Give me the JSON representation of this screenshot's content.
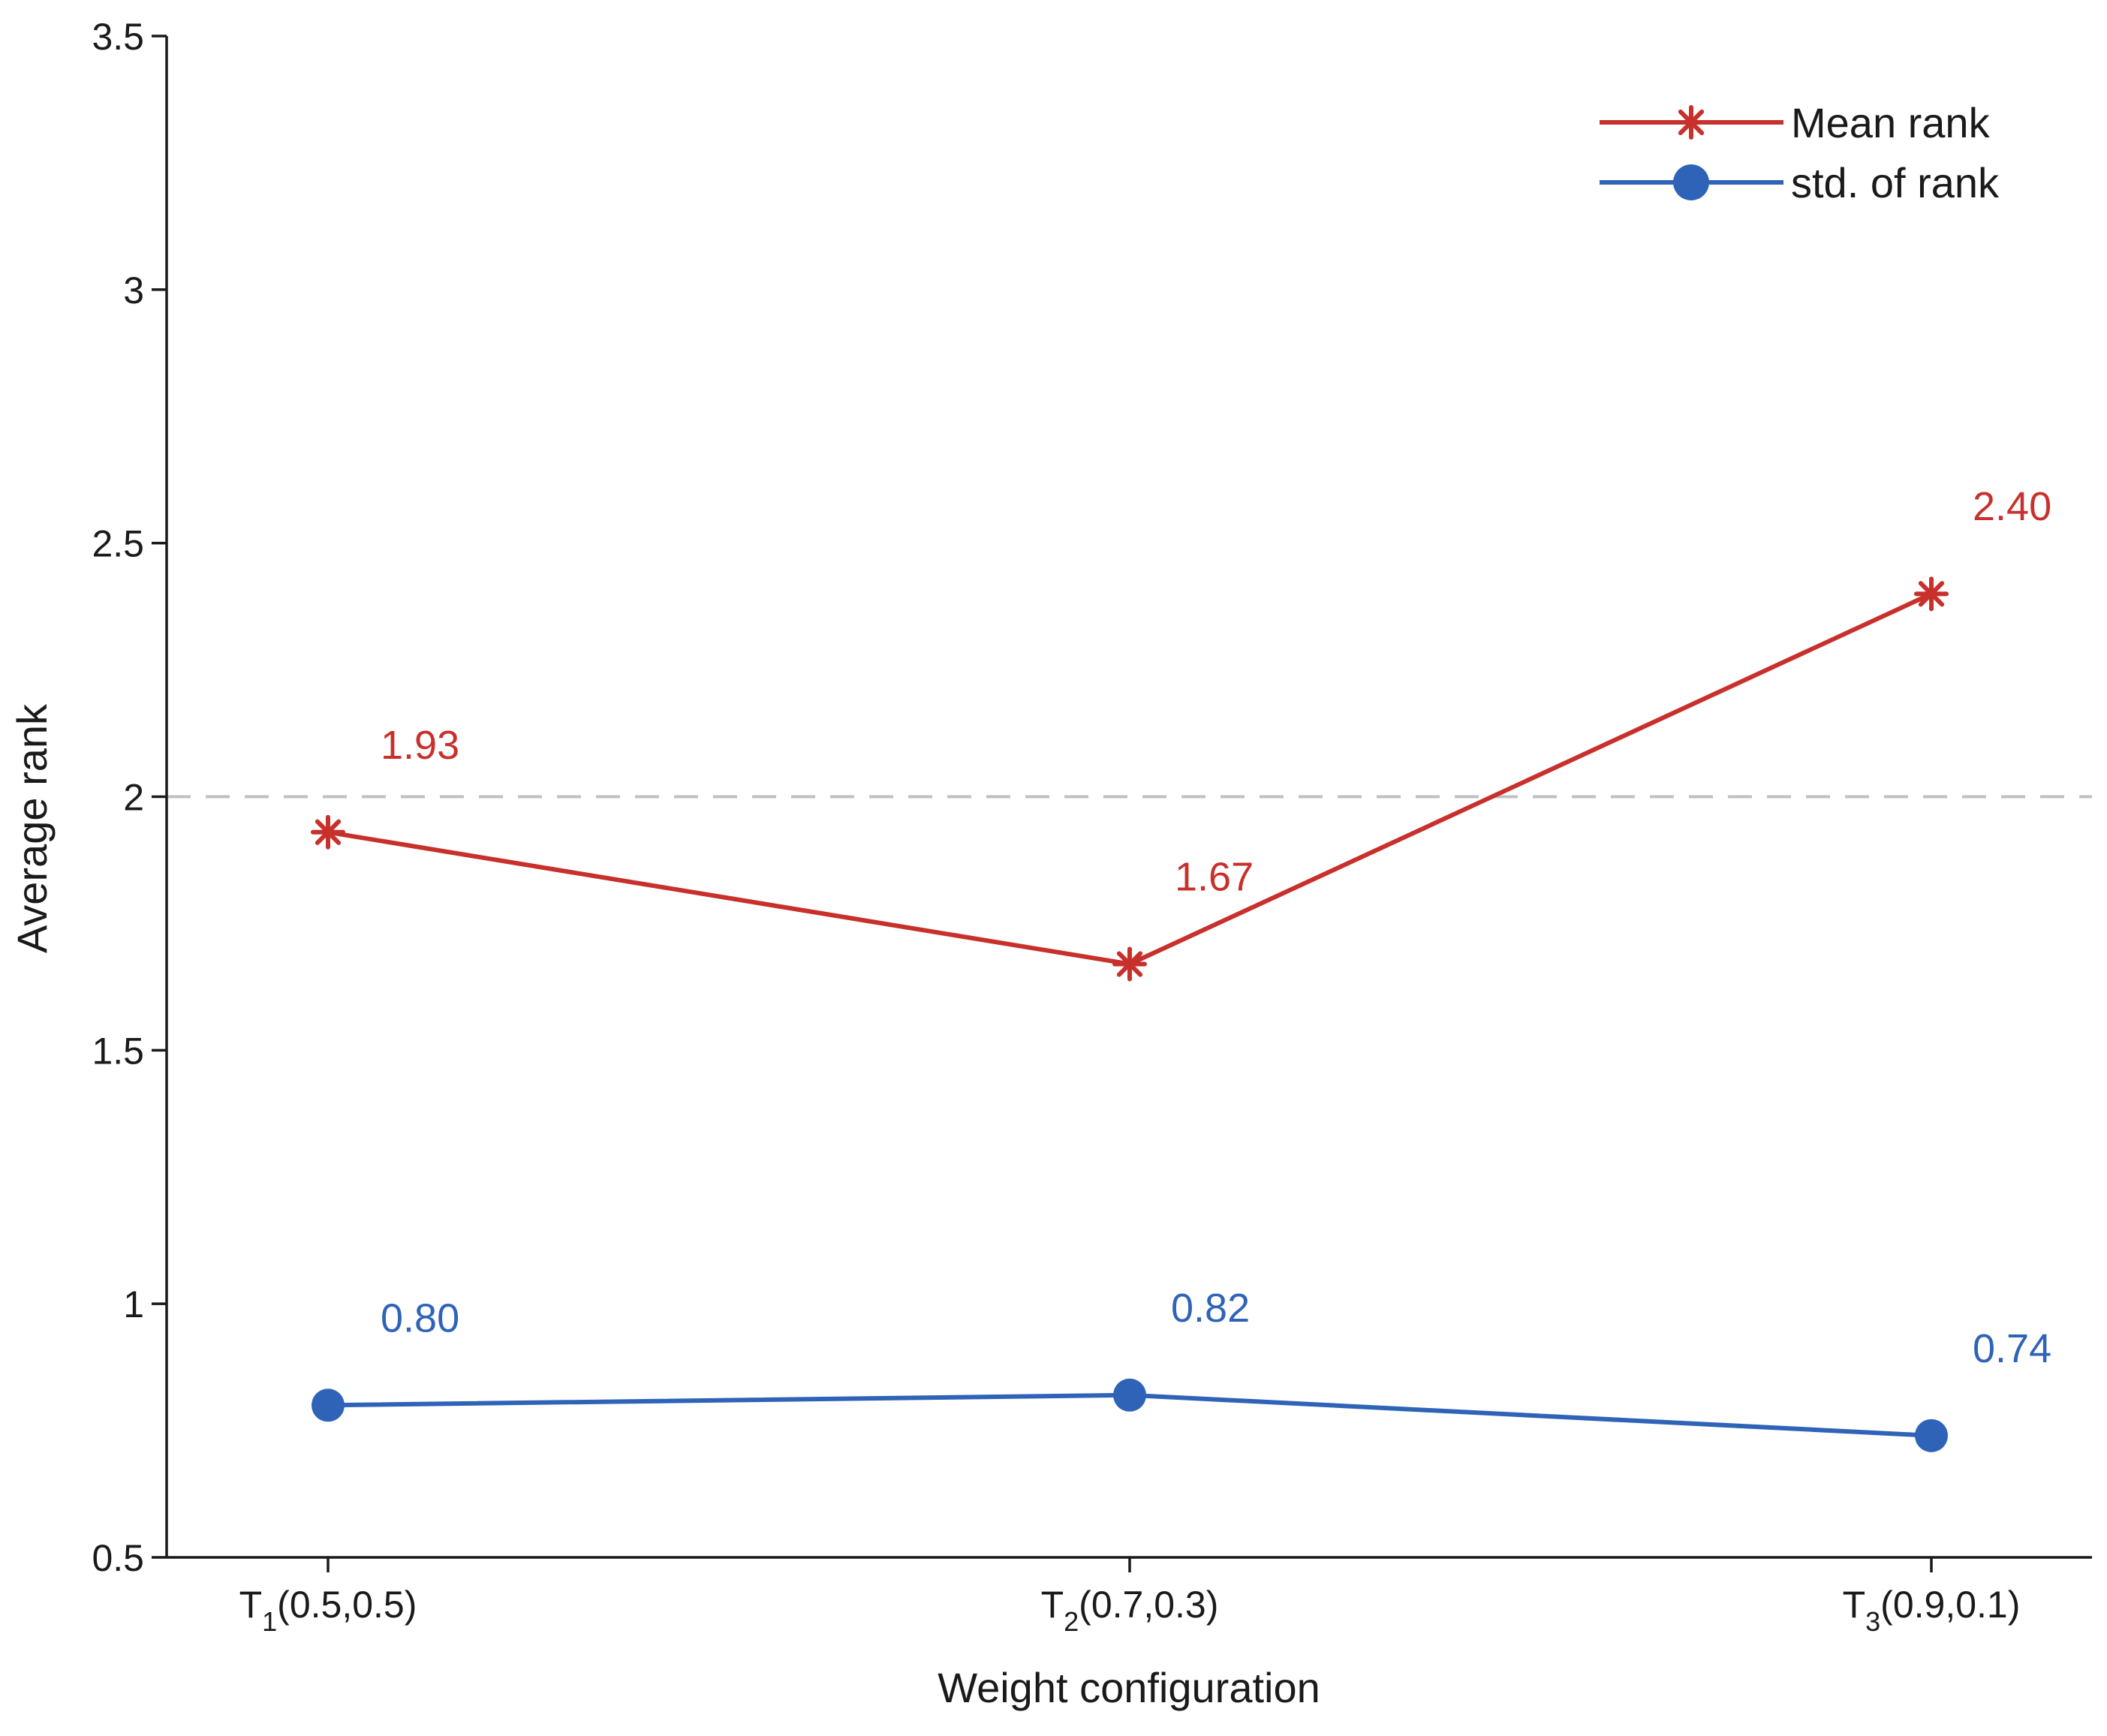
{
  "chart_data": {
    "type": "line",
    "title": "",
    "xlabel": "Weight configuration",
    "ylabel": "Average rank",
    "ylim": [
      0.5,
      3.5
    ],
    "yticks": [
      0.5,
      1,
      1.5,
      2,
      2.5,
      3,
      3.5
    ],
    "ytick_labels": [
      "0.5",
      "1",
      "1.5",
      "2",
      "2.5",
      "3",
      "3.5"
    ],
    "grid": false,
    "categories": [
      {
        "base": "T",
        "sub": "1",
        "rest": "(0.5,0.5)"
      },
      {
        "base": "T",
        "sub": "2",
        "rest": "(0.7,0.3)"
      },
      {
        "base": "T",
        "sub": "3",
        "rest": "(0.9,0.1)"
      }
    ],
    "reference_line": {
      "y": 2,
      "style": "dashed",
      "color": "#c0c0c0"
    },
    "legend_position": "top-right",
    "series": [
      {
        "name": "Mean rank",
        "marker": "asterisk",
        "color": "#c8302c",
        "values": [
          1.93,
          1.67,
          2.4
        ],
        "labels": [
          "1.93",
          "1.67",
          "2.40"
        ]
      },
      {
        "name": "std. of rank",
        "marker": "circle",
        "color": "#2f63b8",
        "values": [
          0.8,
          0.82,
          0.74
        ],
        "labels": [
          "0.80",
          "0.82",
          "0.74"
        ]
      }
    ]
  }
}
